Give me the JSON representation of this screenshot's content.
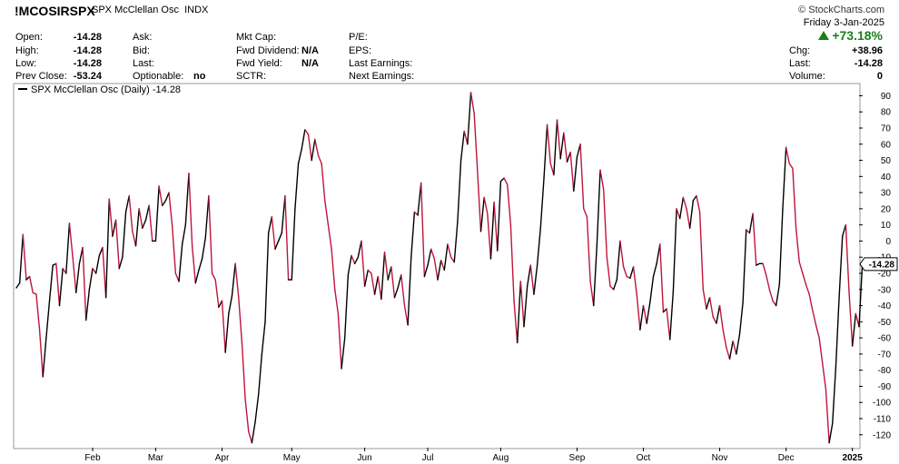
{
  "header": {
    "symbol": "!MCOSIRSPX",
    "description": "SPX McClellan Osc",
    "exchange": "INDX",
    "brand": "© StockCharts.com",
    "date_line": "Friday  3-Jan-2025",
    "pct_change": "+73.18%",
    "fields": {
      "open_label": "Open:",
      "open": "-14.28",
      "high_label": "High:",
      "high": "-14.28",
      "low_label": "Low:",
      "low": "-14.28",
      "prev_close_label": "Prev Close:",
      "prev_close": "-53.24",
      "ask_label": "Ask:",
      "bid_label": "Bid:",
      "last_label": "Last:",
      "optionable_label": "Optionable:",
      "optionable": "no",
      "mktcap_label": "Mkt Cap:",
      "fwd_div_label": "Fwd Dividend:",
      "fwd_div": "N/A",
      "fwd_yield_label": "Fwd Yield:",
      "fwd_yield": "N/A",
      "sctr_label": "SCTR:",
      "pe_label": "P/E:",
      "eps_label": "EPS:",
      "last_earn_label": "Last Earnings:",
      "next_earn_label": "Next Earnings:",
      "chg_label": "Chg:",
      "chg": "+38.96",
      "last2_label": "Last:",
      "last2": "-14.28",
      "volume_label": "Volume:",
      "volume": "0"
    }
  },
  "chart_data": {
    "type": "line",
    "legend": "SPX McClellan Osc (Daily) -14.28",
    "last_value_label": "-14.28",
    "last_value": -14.28,
    "ylim": [
      -128,
      97
    ],
    "y_ticks": [
      90,
      80,
      70,
      60,
      50,
      40,
      30,
      20,
      10,
      0,
      -10,
      -20,
      -30,
      -40,
      -50,
      -60,
      -70,
      -80,
      -90,
      -100,
      -110,
      -120
    ],
    "x_range": [
      0,
      254
    ],
    "x_ticks": [
      {
        "label": "Feb",
        "x": 23
      },
      {
        "label": "Mar",
        "x": 42
      },
      {
        "label": "Apr",
        "x": 62
      },
      {
        "label": "May",
        "x": 83
      },
      {
        "label": "Jun",
        "x": 105
      },
      {
        "label": "Jul",
        "x": 124
      },
      {
        "label": "Aug",
        "x": 146
      },
      {
        "label": "Sep",
        "x": 169
      },
      {
        "label": "Oct",
        "x": 189
      },
      {
        "label": "Nov",
        "x": 212
      },
      {
        "label": "Dec",
        "x": 232
      },
      {
        "label": "2025",
        "x": 252
      }
    ],
    "colors": {
      "up": "#000000",
      "down": "#c0143c"
    },
    "series": [
      {
        "values": [
          -29,
          -26,
          4,
          -24,
          -22,
          -32,
          -33,
          -55,
          -84,
          -60,
          -37,
          -15,
          -14,
          -40,
          -17,
          -20,
          11,
          -10,
          -32,
          -14,
          -4,
          -49,
          -30,
          -17,
          -20,
          -9,
          -4,
          -35,
          26,
          3,
          13,
          -17,
          -10,
          18,
          28,
          6,
          -3,
          20,
          8,
          13,
          22,
          0,
          0,
          34,
          22,
          25,
          30,
          9,
          -20,
          -25,
          -2,
          10,
          42,
          -3,
          -26,
          -18,
          -11,
          2,
          28,
          -20,
          -24,
          -41,
          -37,
          -69,
          -45,
          -34,
          -14,
          -35,
          -63,
          -98,
          -118,
          -125,
          -112,
          -95,
          -70,
          -50,
          5,
          15,
          -5,
          0,
          5,
          28,
          -24,
          -24,
          20,
          48,
          57,
          69,
          66,
          50,
          63,
          53,
          48,
          25,
          10,
          -5,
          -30,
          -45,
          -79,
          -60,
          -21,
          -9,
          -14,
          -10,
          0,
          -28,
          -18,
          -20,
          -33,
          -22,
          -36,
          -7,
          -24,
          -16,
          -35,
          -29,
          -21,
          -40,
          -52,
          -10,
          18,
          16,
          36,
          -22,
          -15,
          -5,
          -11,
          -24,
          -12,
          -18,
          -2,
          -10,
          -13,
          12,
          50,
          68,
          60,
          92,
          79,
          43,
          6,
          27,
          17,
          -11,
          24,
          -6,
          37,
          39,
          35,
          10,
          -37,
          -63,
          -25,
          -53,
          -28,
          -15,
          -33,
          -15,
          8,
          38,
          72,
          48,
          41,
          75,
          51,
          67,
          49,
          55,
          31,
          52,
          60,
          20,
          15,
          -25,
          -40,
          -2,
          44,
          32,
          -10,
          -28,
          -30,
          -24,
          0,
          -16,
          -22,
          -23,
          -16,
          -33,
          -55,
          -40,
          -51,
          -38,
          -22,
          -14,
          -2,
          -44,
          -42,
          -61,
          -31,
          20,
          14,
          27,
          20,
          8,
          25,
          28,
          18,
          -30,
          -42,
          -35,
          -47,
          -51,
          -40,
          -55,
          -66,
          -73,
          -62,
          -70,
          -58,
          -38,
          7,
          5,
          17,
          -15,
          -14,
          -14,
          -21,
          -30,
          -37,
          -40,
          -27,
          20,
          58,
          48,
          45,
          8,
          -13,
          -20,
          -27,
          -33,
          -43,
          -52,
          -60,
          -76,
          -92,
          -125,
          -113,
          -78,
          -35,
          3,
          10,
          -32,
          -65,
          -45,
          -53,
          -14
        ]
      }
    ]
  }
}
